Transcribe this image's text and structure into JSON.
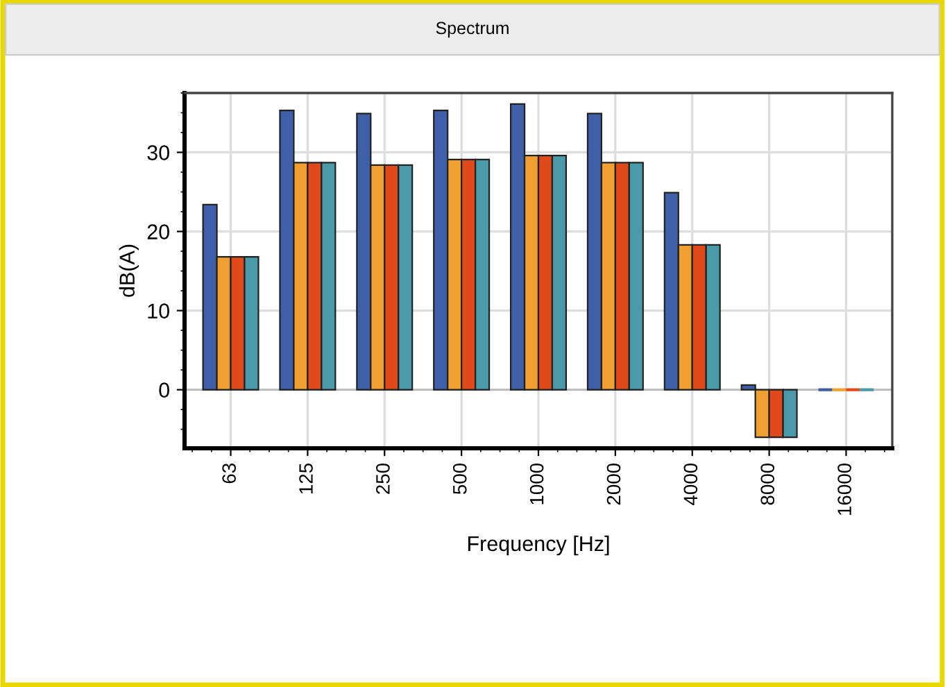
{
  "chart_data": {
    "type": "bar",
    "title": "Spectrum",
    "xlabel": "Frequency [Hz]",
    "ylabel": "dB(A)",
    "categories": [
      "63",
      "125",
      "250",
      "500",
      "1000",
      "2000",
      "4000",
      "8000",
      "16000"
    ],
    "series": [
      {
        "color": "#3f5fa8",
        "values": [
          23.4,
          35.3,
          34.9,
          35.3,
          36.1,
          34.9,
          24.9,
          0.6,
          0
        ]
      },
      {
        "color": "#f0a030",
        "values": [
          16.8,
          28.7,
          28.4,
          29.1,
          29.6,
          28.7,
          18.3,
          -6.0,
          0
        ]
      },
      {
        "color": "#e04a1a",
        "values": [
          16.8,
          28.7,
          28.4,
          29.1,
          29.6,
          28.7,
          18.3,
          -6.0,
          0
        ]
      },
      {
        "color": "#4a9aaa",
        "values": [
          16.8,
          28.7,
          28.4,
          29.1,
          29.6,
          28.7,
          18.3,
          -6.0,
          0
        ]
      }
    ],
    "ylim": [
      -7.4,
      37.5
    ],
    "yticks": [
      0,
      10,
      20,
      30
    ],
    "grid": true,
    "legend": false
  }
}
